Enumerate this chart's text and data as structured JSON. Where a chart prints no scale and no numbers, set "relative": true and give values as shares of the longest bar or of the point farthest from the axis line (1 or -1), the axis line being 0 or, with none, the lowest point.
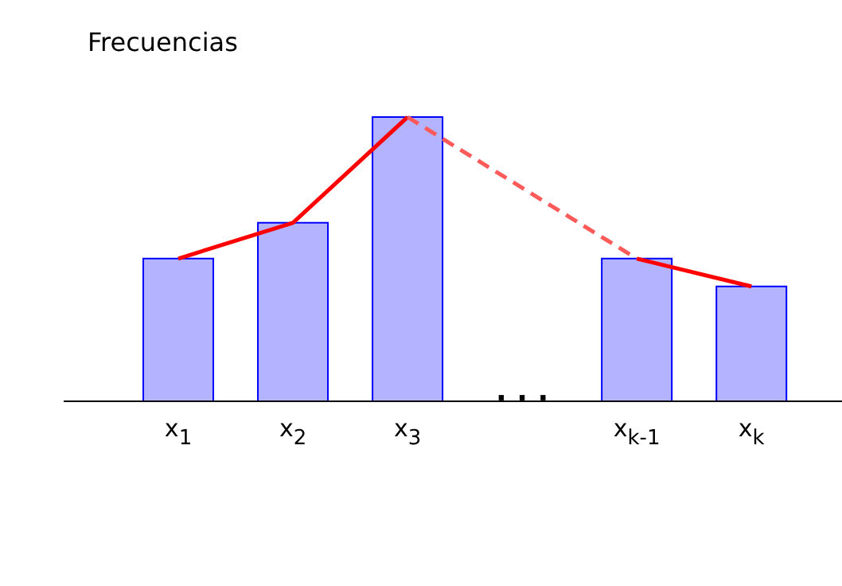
{
  "chart_data": {
    "type": "bar",
    "relative": true,
    "ylabel": "Frecuencias",
    "categories": [
      "x$_{1}$",
      "x$_{2}$",
      "x$_{3}$",
      null,
      "x$_{k-1}$",
      "x$_{k}$"
    ],
    "series": [
      {
        "color": "#b3b3ff",
        "values": [
          0.502,
          0.628,
          1,
          null,
          0.502,
          0.404
        ]
      },
      {
        "type": "line",
        "color": "#ff0000",
        "values": [
          0.502,
          0.628,
          1,
          null,
          0.502,
          0.404
        ]
      },
      {
        "type": "line",
        "color": "#ff5a5a",
        "line_style": "dashed",
        "x": [
          "x$_{3}$",
          "x$_{k-1}$"
        ],
        "values": [
          1,
          0.502
        ]
      }
    ],
    "annotations": [
      "· · ·"
    ],
    "grid": false,
    "legend": false,
    "marker": "none"
  }
}
